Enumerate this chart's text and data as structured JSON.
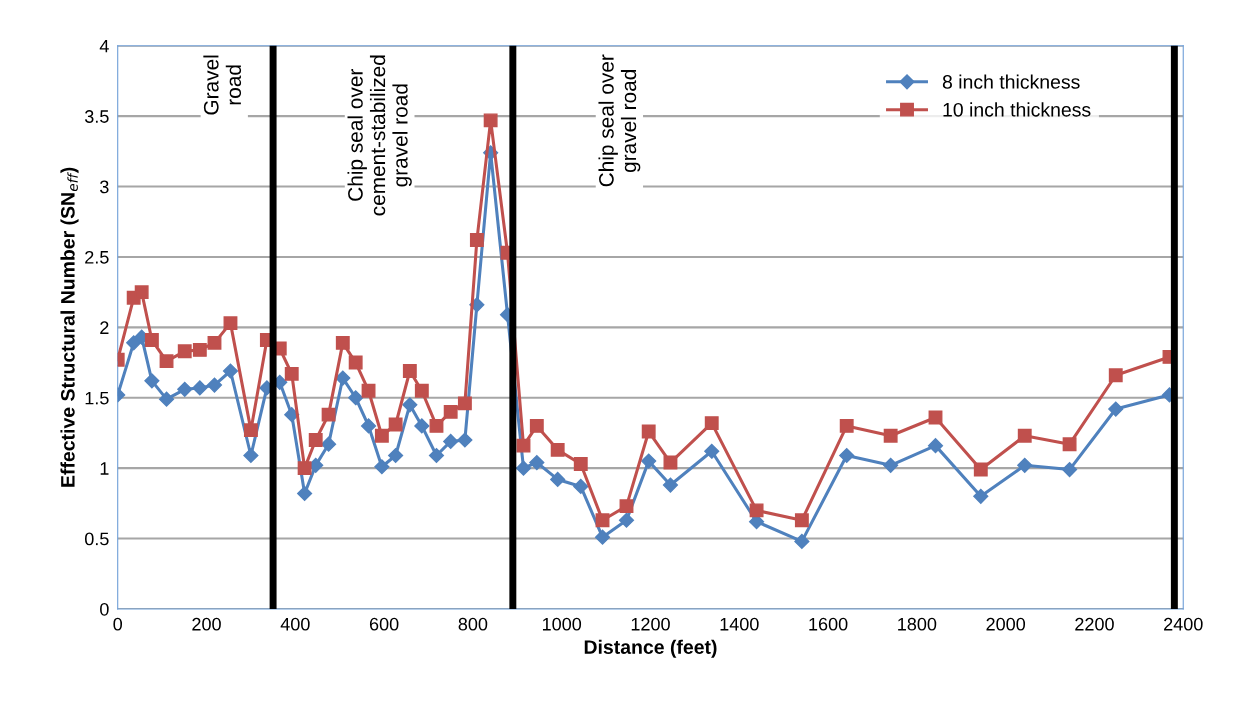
{
  "chart_data": {
    "type": "line",
    "xlabel": "Distance (feet)",
    "ylabel": "Effective Structural Number (SN$_{eff}$)",
    "xlim": [
      0,
      2400
    ],
    "xticks": [
      0,
      200,
      400,
      600,
      800,
      1000,
      1200,
      1400,
      1600,
      1800,
      2000,
      2200,
      2400
    ],
    "ylim": [
      0,
      4
    ],
    "yticks": [
      0,
      0.5,
      1,
      1.5,
      2,
      2.5,
      3,
      3.5,
      4
    ],
    "grid": "y",
    "legend": "top right",
    "line_style": "solid",
    "annotations": [
      "Gravel\nroad",
      "Chip seal over\ncement-stabilized\ngravel road",
      "Chip seal over\ngravel road"
    ],
    "x": [
      0,
      36,
      54,
      77,
      110,
      151,
      185,
      218,
      254,
      300,
      336,
      365,
      392,
      421,
      446,
      475,
      507,
      536,
      565,
      595,
      626,
      658,
      685,
      718,
      750,
      782,
      809,
      840,
      878,
      914,
      944,
      991,
      1043,
      1092,
      1146,
      1196,
      1245,
      1338,
      1439,
      1541,
      1642,
      1741,
      1842,
      1944,
      2043,
      2144,
      2248,
      2369
    ],
    "series": [
      {
        "name": "8 inch thickness",
        "color": "#4f81bd",
        "marker": "diamond",
        "values": [
          1.52,
          1.89,
          1.93,
          1.62,
          1.49,
          1.56,
          1.57,
          1.59,
          1.69,
          1.09,
          1.57,
          1.61,
          1.38,
          0.82,
          1.02,
          1.17,
          1.64,
          1.5,
          1.3,
          1.01,
          1.09,
          1.45,
          1.3,
          1.09,
          1.19,
          1.2,
          2.16,
          3.24,
          2.09,
          1.0,
          1.04,
          0.92,
          0.87,
          0.51,
          0.63,
          1.05,
          0.88,
          1.12,
          0.62,
          0.48,
          1.09,
          1.02,
          1.16,
          0.8,
          1.02,
          0.99,
          1.42,
          1.52
        ]
      },
      {
        "name": "10 inch thickness",
        "color": "#c0504d",
        "marker": "square",
        "values": [
          1.77,
          2.21,
          2.25,
          1.91,
          1.76,
          1.83,
          1.84,
          1.89,
          2.03,
          1.27,
          1.91,
          1.85,
          1.67,
          1.0,
          1.2,
          1.38,
          1.89,
          1.75,
          1.55,
          1.23,
          1.31,
          1.69,
          1.55,
          1.3,
          1.4,
          1.46,
          2.62,
          3.47,
          2.53,
          1.16,
          1.3,
          1.13,
          1.03,
          0.63,
          0.73,
          1.26,
          1.04,
          1.32,
          0.7,
          0.63,
          1.3,
          1.23,
          1.36,
          0.99,
          1.23,
          1.17,
          1.66,
          1.79
        ]
      }
    ],
    "ref_lines": [
      {
        "axis": "x",
        "value": 350,
        "color": "#000000",
        "line_style": "solid"
      },
      {
        "axis": "x",
        "value": 890,
        "color": "#000000",
        "line_style": "solid"
      },
      {
        "axis": "x",
        "value": 2380,
        "color": "#000000",
        "line_style": "solid"
      }
    ]
  }
}
